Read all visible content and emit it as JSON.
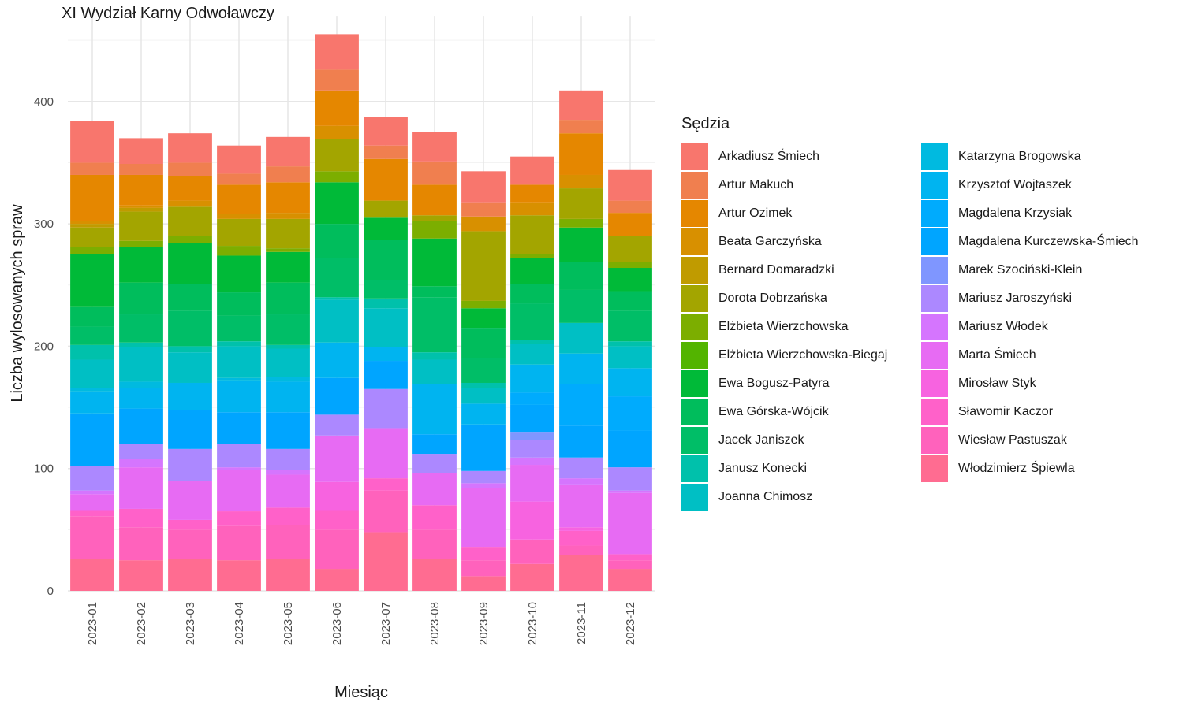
{
  "chart_data": {
    "type": "bar",
    "stacked": true,
    "title": "XI Wydział Karny Odwoławczy",
    "xlabel": "Miesiąc",
    "ylabel": "Liczba wylosowanych spraw",
    "ylim": [
      0,
      470
    ],
    "yticks": [
      0,
      100,
      200,
      300,
      400
    ],
    "grid": true,
    "legend_title": "Sędzia",
    "legend_position": "right",
    "categories": [
      "2023-01",
      "2023-02",
      "2023-03",
      "2023-04",
      "2023-05",
      "2023-06",
      "2023-07",
      "2023-08",
      "2023-09",
      "2023-10",
      "2023-11",
      "2023-12"
    ],
    "series": [
      {
        "name": "Włodzimierz Śpiewla",
        "color": "#FF6C91",
        "values": [
          26,
          25,
          26,
          25,
          26,
          18,
          48,
          26,
          12,
          22,
          29,
          18
        ]
      },
      {
        "name": "Wiesław Pastuszak",
        "color": "#FF62BC",
        "values": [
          35,
          27,
          24,
          28,
          28,
          32,
          34,
          24,
          13,
          20,
          8,
          7
        ]
      },
      {
        "name": "Sławomir Kaczor",
        "color": "#FF61C9",
        "values": [
          5,
          15,
          8,
          12,
          14,
          16,
          10,
          20,
          11,
          0,
          12,
          5
        ]
      },
      {
        "name": "Mirosław Styk",
        "color": "#F763E0",
        "values": [
          0,
          0,
          0,
          0,
          0,
          23,
          0,
          0,
          0,
          31,
          3,
          0
        ]
      },
      {
        "name": "Marta Śmiech",
        "color": "#E76BF3",
        "values": [
          13,
          34,
          32,
          34,
          27,
          38,
          41,
          26,
          48,
          30,
          35,
          50
        ]
      },
      {
        "name": "Mariusz Włodek",
        "color": "#D575FE",
        "values": [
          3,
          7,
          0,
          2,
          4,
          0,
          0,
          0,
          4,
          6,
          5,
          2
        ]
      },
      {
        "name": "Mariusz Jaroszyński",
        "color": "#AC88FF",
        "values": [
          20,
          12,
          26,
          19,
          17,
          17,
          32,
          16,
          10,
          14,
          17,
          19
        ]
      },
      {
        "name": "Marek Szociński-Klein",
        "color": "#7F96FF",
        "values": [
          0,
          0,
          0,
          0,
          0,
          0,
          0,
          0,
          0,
          7,
          0,
          0
        ]
      },
      {
        "name": "Magdalena Kurczewska-Śmiech",
        "color": "#00A5FF",
        "values": [
          43,
          29,
          32,
          26,
          30,
          30,
          23,
          16,
          38,
          22,
          26,
          30
        ]
      },
      {
        "name": "Magdalena Krzysiak",
        "color": "#00ABFD",
        "values": [
          0,
          0,
          0,
          0,
          0,
          0,
          0,
          0,
          0,
          10,
          34,
          28
        ]
      },
      {
        "name": "Krzysztof Wojtaszek",
        "color": "#00B4F0",
        "values": [
          18,
          17,
          22,
          26,
          25,
          29,
          11,
          41,
          17,
          23,
          25,
          23
        ]
      },
      {
        "name": "Katarzyna Brogowska",
        "color": "#00BAE0",
        "values": [
          3,
          5,
          0,
          2,
          4,
          0,
          0,
          0,
          0,
          0,
          0,
          0
        ]
      },
      {
        "name": "Joanna Chimosz",
        "color": "#00BFC4",
        "values": [
          23,
          28,
          25,
          26,
          23,
          35,
          32,
          20,
          13,
          17,
          25,
          18
        ]
      },
      {
        "name": "Janusz Konecki",
        "color": "#00C1AB",
        "values": [
          12,
          4,
          5,
          4,
          3,
          2,
          8,
          6,
          4,
          3,
          0,
          4
        ]
      },
      {
        "name": "Jacek Janiszek",
        "color": "#00BE67",
        "values": [
          15,
          23,
          29,
          21,
          25,
          32,
          15,
          45,
          20,
          30,
          27,
          25
        ]
      },
      {
        "name": "Ewa Górska-Wójcik",
        "color": "#00BD5C",
        "values": [
          16,
          26,
          22,
          19,
          26,
          28,
          33,
          9,
          25,
          16,
          23,
          16
        ]
      },
      {
        "name": "Ewa Bogusz-Patyra",
        "color": "#00BA38",
        "values": [
          43,
          29,
          33,
          30,
          25,
          34,
          18,
          39,
          16,
          21,
          28,
          19
        ]
      },
      {
        "name": "Elżbieta Wierzchowska-Biegaj",
        "color": "#53B400",
        "values": [
          0,
          0,
          0,
          0,
          0,
          0,
          0,
          0,
          0,
          0,
          0,
          0
        ]
      },
      {
        "name": "Elżbieta Wierzchowska",
        "color": "#7CAE00",
        "values": [
          6,
          5,
          6,
          8,
          3,
          9,
          0,
          14,
          6,
          3,
          7,
          5
        ]
      },
      {
        "name": "Dorota Dobrzańska",
        "color": "#A3A500",
        "values": [
          16,
          24,
          24,
          22,
          24,
          26,
          14,
          5,
          57,
          32,
          25,
          21
        ]
      },
      {
        "name": "Bernard Domaradzki",
        "color": "#C09B00",
        "values": [
          3,
          3,
          0,
          0,
          0,
          0,
          0,
          0,
          0,
          0,
          0,
          0
        ]
      },
      {
        "name": "Beata Garczyńska",
        "color": "#D89000",
        "values": [
          2,
          2,
          5,
          4,
          5,
          11,
          0,
          0,
          12,
          10,
          11,
          0
        ]
      },
      {
        "name": "Artur Ozimek",
        "color": "#E58700",
        "values": [
          38,
          25,
          20,
          24,
          25,
          29,
          34,
          25,
          0,
          15,
          34,
          19
        ]
      },
      {
        "name": "Artur Makuch",
        "color": "#F07F4F",
        "values": [
          10,
          9,
          11,
          9,
          13,
          17,
          11,
          19,
          11,
          0,
          11,
          10
        ]
      },
      {
        "name": "Arkadiusz Śmiech",
        "color": "#F8766D",
        "values": [
          34,
          21,
          24,
          23,
          24,
          29,
          23,
          24,
          26,
          23,
          24,
          25
        ]
      }
    ]
  }
}
